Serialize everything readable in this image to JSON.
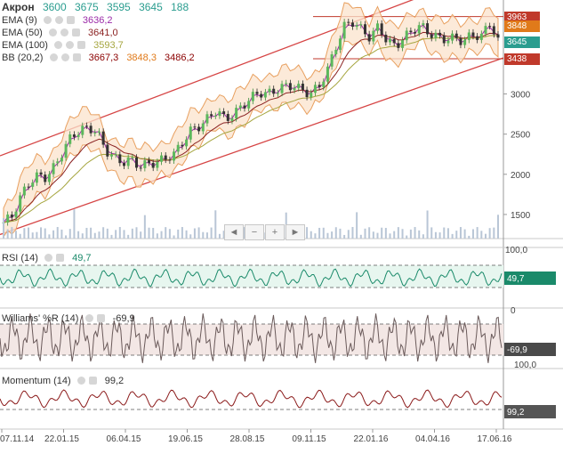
{
  "chart_data": {
    "type": "candlestick",
    "instrument": "Акрон",
    "ohlc": {
      "open": "3600",
      "high": "3675",
      "low": "3595",
      "close": "3645",
      "volume": "188"
    },
    "x_ticks": [
      "07.11.14",
      "22.01.15",
      "06.04.15",
      "19.06.15",
      "28.08.15",
      "09.11.15",
      "22.01.16",
      "04.04.16",
      "17.06.16"
    ],
    "main_panel": {
      "y_ticks": [
        1500,
        2000,
        2500,
        3000
      ],
      "ylim": [
        1200,
        4170
      ],
      "series": [
        {
          "name": "EMA (9)",
          "value": "3636,2",
          "color": "#9b2aa8"
        },
        {
          "name": "EMA (50)",
          "value": "3641,0",
          "color": "#8b2222"
        },
        {
          "name": "EMA (100)",
          "value": "3593,7",
          "color": "#a6a640"
        },
        {
          "name": "BB (20,2)",
          "values": [
            "3667,3",
            "3848,3",
            "3486,2"
          ],
          "colors": [
            "#8b0000",
            "#e07a1a",
            "#8b0000"
          ]
        }
      ],
      "close_series": [
        1400,
        1480,
        1720,
        1900,
        1980,
        1960,
        2100,
        2300,
        2480,
        2550,
        2580,
        2520,
        2300,
        2200,
        2150,
        2180,
        2100,
        2130,
        2150,
        2200,
        2250,
        2400,
        2550,
        2600,
        2700,
        2800,
        2680,
        2750,
        2850,
        2950,
        3020,
        3000,
        3050,
        3100,
        3100,
        3050,
        3000,
        3100,
        3300,
        3600,
        3850,
        3900,
        3800,
        3700,
        3850,
        3650,
        3600,
        3700,
        3800,
        3850,
        3750,
        3700,
        3680,
        3700,
        3650,
        3750,
        3700,
        3900,
        3645
      ],
      "price_tags": [
        {
          "label": "3963",
          "value": 3963,
          "color": "#c0392b"
        },
        {
          "label": "3848",
          "value": 3848,
          "color": "#e07a1a"
        },
        {
          "label": "3645",
          "value": 3645,
          "color": "#2a9d8f"
        },
        {
          "label": "3438",
          "value": 3438,
          "color": "#c0392b"
        }
      ]
    },
    "volume_axis_label": "100,0",
    "rsi": {
      "name": "RSI (14)",
      "value": "49,7",
      "color": "#1a8a6a",
      "levels": [
        70,
        30
      ]
    },
    "williams": {
      "name": "Williams' %R (14)",
      "value": "-69,9",
      "color": "#6a5a5a",
      "axis_labels": [
        "0",
        "100,0"
      ]
    },
    "momentum": {
      "name": "Momentum (14)",
      "value": "99,2",
      "color": "#8b1a1a"
    }
  },
  "navigation": {
    "left": "◄",
    "minus": "−",
    "plus": "+",
    "right": "►"
  }
}
